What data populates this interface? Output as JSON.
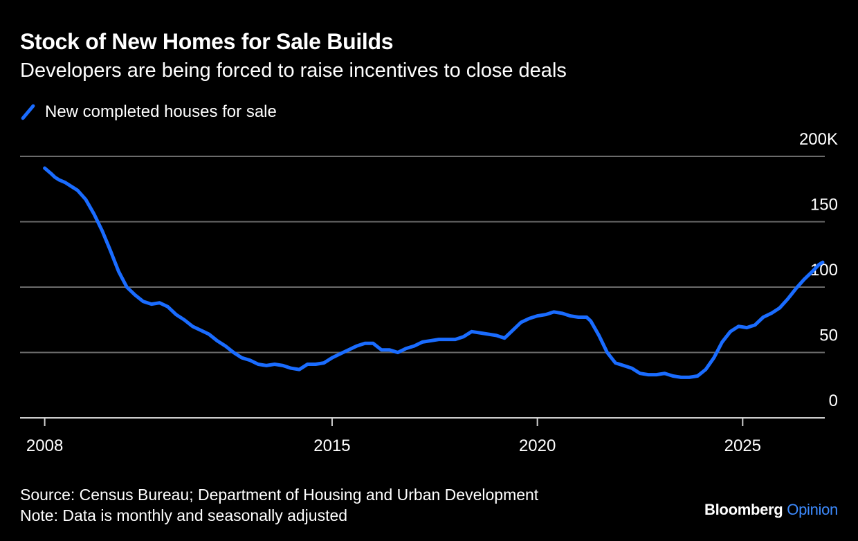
{
  "header": {
    "title": "Stock of New Homes for Sale Builds",
    "subtitle": "Developers are being forced to raise incentives to close deals"
  },
  "colors": {
    "background": "#000000",
    "series": "#1a6cff",
    "grid": "#6b6b6b",
    "text": "#ffffff",
    "brand_accent": "#3d8bff"
  },
  "footer": {
    "source": "Source: Census Bureau; Department of Housing and Urban Development",
    "note": "Note: Data is monthly and seasonally adjusted"
  },
  "brand": {
    "name": "Bloomberg",
    "section": "Opinion"
  },
  "chart_data": {
    "type": "line",
    "title": "Stock of New Homes for Sale Builds",
    "subtitle": "Developers are being forced to raise incentives to close deals",
    "xlabel": "",
    "ylabel": "",
    "x_tick_values": [
      2008,
      2015,
      2020,
      2025
    ],
    "x_tick_labels": [
      "2008",
      "2015",
      "2020",
      "2025"
    ],
    "y_tick_values": [
      0,
      50,
      100,
      150,
      200
    ],
    "y_tick_labels": [
      "0",
      "50",
      "100",
      "150",
      "200K"
    ],
    "xlim": [
      2007.4,
      2027.0
    ],
    "ylim": [
      0,
      200
    ],
    "y_axis_position": "right",
    "grid": "horizontal",
    "legend_position": "top-left",
    "series": [
      {
        "name": "New completed houses for sale",
        "points": [
          [
            2008.0,
            191
          ],
          [
            2008.15,
            187
          ],
          [
            2008.25,
            184
          ],
          [
            2008.35,
            182
          ],
          [
            2008.5,
            180
          ],
          [
            2008.65,
            177
          ],
          [
            2008.8,
            174
          ],
          [
            2009.0,
            167
          ],
          [
            2009.2,
            156
          ],
          [
            2009.4,
            143
          ],
          [
            2009.6,
            128
          ],
          [
            2009.8,
            112
          ],
          [
            2010.0,
            100
          ],
          [
            2010.2,
            94
          ],
          [
            2010.4,
            89
          ],
          [
            2010.6,
            87
          ],
          [
            2010.8,
            88
          ],
          [
            2011.0,
            85
          ],
          [
            2011.2,
            79
          ],
          [
            2011.4,
            75
          ],
          [
            2011.6,
            70
          ],
          [
            2011.8,
            67
          ],
          [
            2012.0,
            64
          ],
          [
            2012.2,
            59
          ],
          [
            2012.4,
            55
          ],
          [
            2012.6,
            50
          ],
          [
            2012.8,
            46
          ],
          [
            2013.0,
            44
          ],
          [
            2013.2,
            41
          ],
          [
            2013.4,
            40
          ],
          [
            2013.6,
            41
          ],
          [
            2013.8,
            40
          ],
          [
            2014.0,
            38
          ],
          [
            2014.2,
            37
          ],
          [
            2014.4,
            41
          ],
          [
            2014.6,
            41
          ],
          [
            2014.8,
            42
          ],
          [
            2015.0,
            46
          ],
          [
            2015.2,
            49
          ],
          [
            2015.4,
            52
          ],
          [
            2015.6,
            55
          ],
          [
            2015.8,
            57
          ],
          [
            2016.0,
            57
          ],
          [
            2016.2,
            52
          ],
          [
            2016.4,
            52
          ],
          [
            2016.6,
            50
          ],
          [
            2016.8,
            53
          ],
          [
            2017.0,
            55
          ],
          [
            2017.2,
            58
          ],
          [
            2017.4,
            59
          ],
          [
            2017.6,
            60
          ],
          [
            2017.8,
            60
          ],
          [
            2018.0,
            60
          ],
          [
            2018.2,
            62
          ],
          [
            2018.4,
            66
          ],
          [
            2018.6,
            65
          ],
          [
            2018.8,
            64
          ],
          [
            2019.0,
            63
          ],
          [
            2019.2,
            61
          ],
          [
            2019.4,
            67
          ],
          [
            2019.6,
            73
          ],
          [
            2019.8,
            76
          ],
          [
            2020.0,
            78
          ],
          [
            2020.2,
            79
          ],
          [
            2020.4,
            81
          ],
          [
            2020.6,
            80
          ],
          [
            2020.8,
            78
          ],
          [
            2021.0,
            77
          ],
          [
            2021.2,
            77
          ],
          [
            2021.3,
            74
          ],
          [
            2021.5,
            63
          ],
          [
            2021.7,
            50
          ],
          [
            2021.9,
            42
          ],
          [
            2022.1,
            40
          ],
          [
            2022.3,
            38
          ],
          [
            2022.5,
            34
          ],
          [
            2022.7,
            33
          ],
          [
            2022.9,
            33
          ],
          [
            2023.1,
            34
          ],
          [
            2023.3,
            32
          ],
          [
            2023.5,
            31
          ],
          [
            2023.7,
            31
          ],
          [
            2023.9,
            32
          ],
          [
            2024.1,
            37
          ],
          [
            2024.3,
            46
          ],
          [
            2024.5,
            58
          ],
          [
            2024.7,
            66
          ],
          [
            2024.9,
            70
          ],
          [
            2025.1,
            69
          ],
          [
            2025.3,
            71
          ],
          [
            2025.5,
            77
          ],
          [
            2025.7,
            80
          ],
          [
            2025.9,
            84
          ],
          [
            2026.1,
            91
          ],
          [
            2026.3,
            99
          ],
          [
            2026.5,
            106
          ],
          [
            2026.7,
            112
          ],
          [
            2026.85,
            117
          ],
          [
            2026.95,
            119
          ]
        ]
      }
    ]
  }
}
